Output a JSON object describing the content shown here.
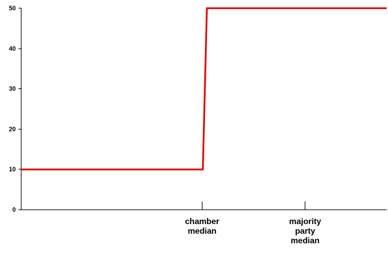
{
  "colors": {
    "series": "#e00000",
    "axis": "#000000"
  },
  "chart_data": {
    "type": "line",
    "title": "",
    "xlabel": "",
    "ylabel": "",
    "ylim": [
      0,
      50
    ],
    "xlim": [
      0,
      100
    ],
    "grid": false,
    "yticks": [
      {
        "value": 0,
        "label": "0"
      },
      {
        "value": 10,
        "label": "10"
      },
      {
        "value": 20,
        "label": "20"
      },
      {
        "value": 30,
        "label": "30"
      },
      {
        "value": 40,
        "label": "40"
      },
      {
        "value": 50,
        "label": "50"
      }
    ],
    "xmarkers": [
      {
        "x": 49.5,
        "lines": [
          "chamber",
          "median"
        ]
      },
      {
        "x": 77.7,
        "lines": [
          "majority",
          "party",
          "median"
        ]
      }
    ],
    "series": [
      {
        "x": [
          0,
          49.7,
          50.8,
          100
        ],
        "y": [
          10,
          10,
          50,
          50
        ]
      }
    ]
  }
}
